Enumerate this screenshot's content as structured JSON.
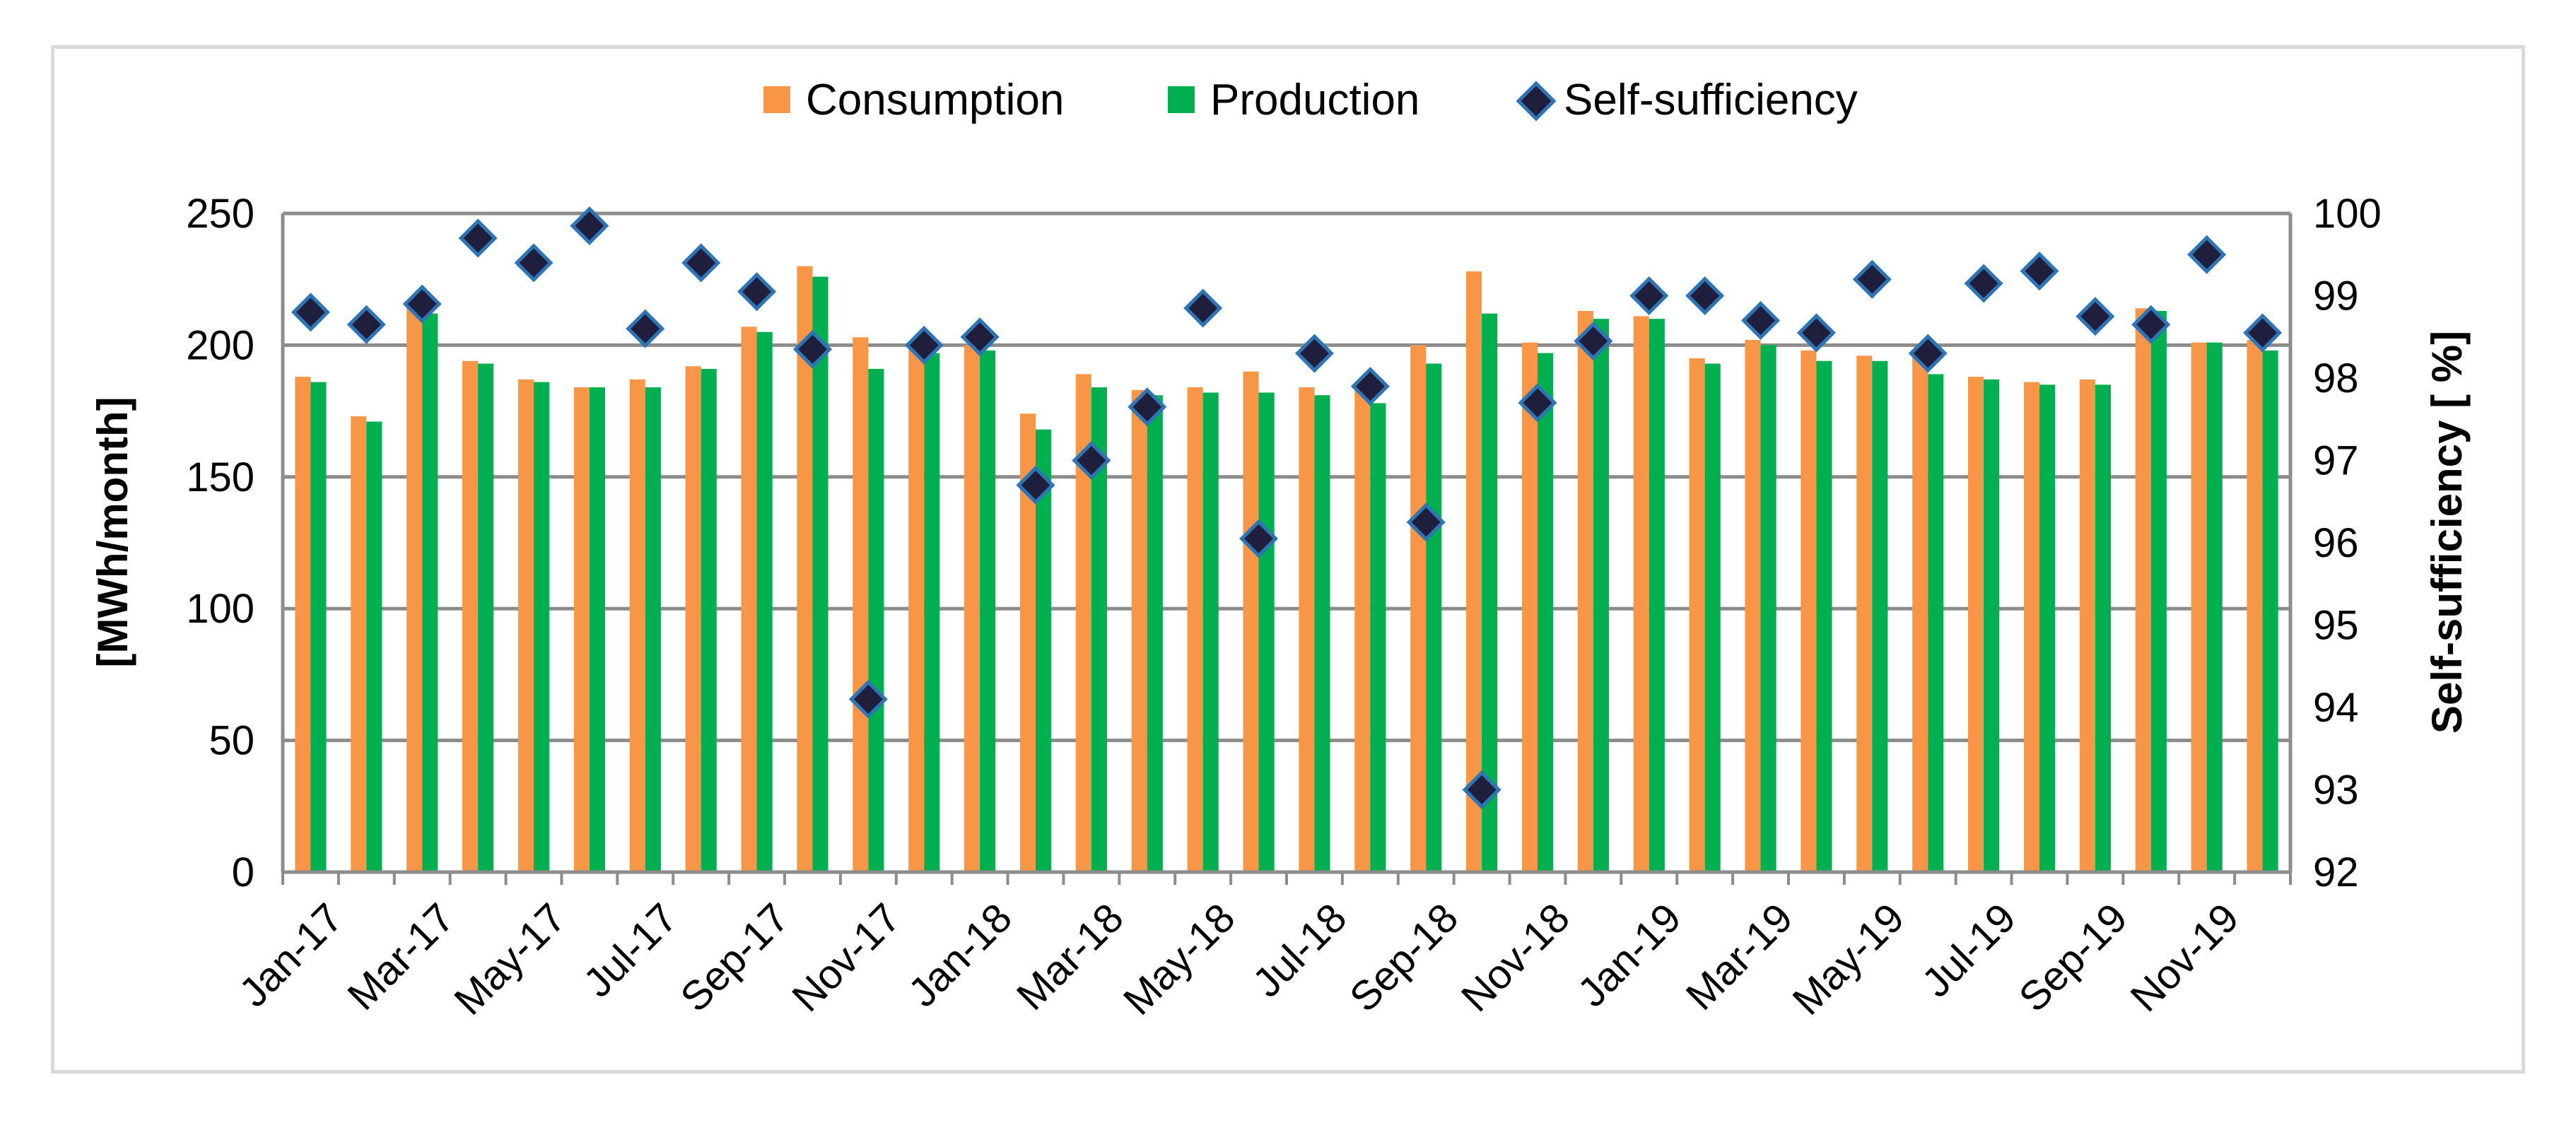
{
  "chart_data": {
    "type": "bar",
    "categories": [
      "Jan-17",
      "Feb-17",
      "Mar-17",
      "Apr-17",
      "May-17",
      "Jun-17",
      "Jul-17",
      "Aug-17",
      "Sep-17",
      "Oct-17",
      "Nov-17",
      "Dec-17",
      "Jan-18",
      "Feb-18",
      "Mar-18",
      "Apr-18",
      "May-18",
      "Jun-18",
      "Jul-18",
      "Aug-18",
      "Sep-18",
      "Oct-18",
      "Nov-18",
      "Dec-18",
      "Jan-19",
      "Feb-19",
      "Mar-19",
      "Apr-19",
      "May-19",
      "Jun-19",
      "Jul-19",
      "Aug-19",
      "Sep-19",
      "Oct-19",
      "Nov-19",
      "Dec-19"
    ],
    "xtick_labels": [
      "Jan-17",
      "Mar-17",
      "May-17",
      "Jul-17",
      "Sep-17",
      "Nov-17",
      "Jan-18",
      "Mar-18",
      "May-18",
      "Jul-18",
      "Sep-18",
      "Nov-18",
      "Jan-19",
      "Mar-19",
      "May-19",
      "Jul-19",
      "Sep-19",
      "Nov-19"
    ],
    "series": [
      {
        "name": "Consumption",
        "type": "bar",
        "axis": "left",
        "color": "#f79646",
        "values": [
          188,
          173,
          215,
          194,
          187,
          184,
          187,
          192,
          207,
          230,
          203,
          200,
          200,
          174,
          189,
          183,
          184,
          190,
          184,
          184,
          200,
          228,
          201,
          213,
          211,
          195,
          202,
          198,
          196,
          196,
          188,
          186,
          187,
          214,
          201,
          202
        ]
      },
      {
        "name": "Production",
        "type": "bar",
        "axis": "left",
        "color": "#00b050",
        "values": [
          186,
          171,
          212,
          193,
          186,
          184,
          184,
          191,
          205,
          226,
          191,
          197,
          198,
          168,
          184,
          181,
          182,
          182,
          181,
          178,
          193,
          212,
          197,
          210,
          210,
          193,
          200,
          194,
          194,
          189,
          187,
          185,
          185,
          213,
          201,
          198
        ]
      },
      {
        "name": "Self-sufficiency",
        "type": "scatter",
        "axis": "right",
        "color": "#1f1f3d",
        "edge_color": "#2e75b6",
        "values": [
          98.8,
          98.65,
          98.9,
          99.7,
          99.4,
          99.85,
          98.6,
          99.4,
          99.05,
          98.35,
          94.1,
          98.4,
          98.5,
          96.7,
          97.0,
          97.65,
          98.85,
          96.05,
          98.3,
          97.9,
          96.25,
          93.0,
          97.7,
          98.45,
          99.0,
          99.0,
          98.7,
          98.55,
          99.2,
          98.3,
          99.15,
          99.3,
          98.75,
          98.65,
          99.5,
          98.55
        ]
      }
    ],
    "title": "",
    "xlabel": "",
    "ylabel": "[MWh/month]",
    "y2label": "Self-sufficiency [ %]",
    "ylim": [
      0,
      250
    ],
    "y2lim": [
      92,
      100
    ],
    "yticks": [
      "0",
      "50",
      "100",
      "150",
      "200",
      "250"
    ],
    "y2ticks": [
      "92",
      "93",
      "94",
      "95",
      "96",
      "97",
      "98",
      "99",
      "100"
    ],
    "grid": "horizontal",
    "legend_position": "top-center"
  }
}
